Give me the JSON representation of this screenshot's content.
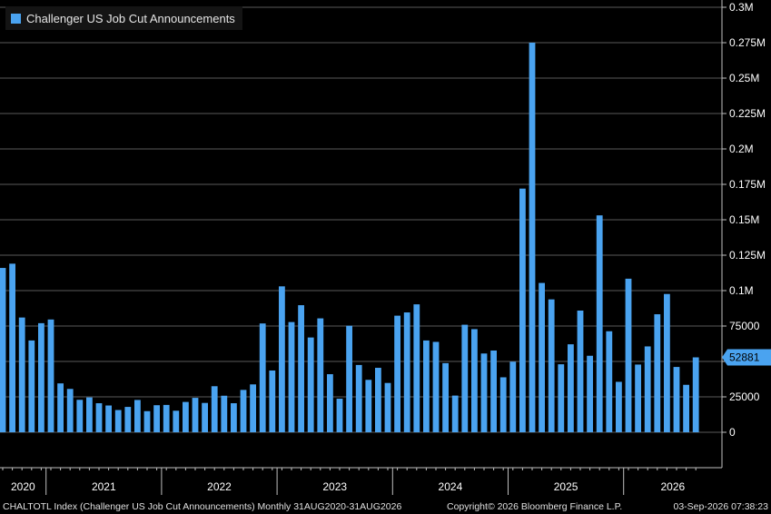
{
  "colors": {
    "bar": "#4aa3f0",
    "grid": "#5a5a5a",
    "axis": "#bfbfbf",
    "last_badge": "#4aa3f0",
    "background": "#000000"
  },
  "legend": {
    "label": "Challenger US Job Cut Announcements"
  },
  "footer": {
    "left": "CHALTOTL Index (Challenger US Job Cut Announcements) Monthly 31AUG2020-31AUG2026",
    "middle": "Copyright© 2026 Bloomberg Finance L.P.",
    "right": "03-Sep-2026 07:38:23"
  },
  "chart_data": {
    "type": "bar",
    "title": "",
    "xlabel": "",
    "ylabel": "",
    "ylim": [
      0,
      300000
    ],
    "y_ticks": [
      0,
      25000,
      50000,
      75000,
      100000,
      125000,
      150000,
      175000,
      200000,
      225000,
      250000,
      275000,
      300000
    ],
    "y_tick_labels": [
      "0",
      "25000",
      "",
      "75000",
      "0.1M",
      "0.125M",
      "0.15M",
      "0.175M",
      "0.2M",
      "0.225M",
      "0.25M",
      "0.275M",
      "0.3M"
    ],
    "x_year_labels": [
      "2020",
      "2021",
      "2022",
      "2023",
      "2024",
      "2025",
      "2026"
    ],
    "last_value_label": "52881",
    "grid": true,
    "legend_position": "top-left",
    "categories": [
      "Aug 2020",
      "Sep 2020",
      "Oct 2020",
      "Nov 2020",
      "Dec 2020",
      "Jan 2021",
      "Feb 2021",
      "Mar 2021",
      "Apr 2021",
      "May 2021",
      "Jun 2021",
      "Jul 2021",
      "Aug 2021",
      "Sep 2021",
      "Oct 2021",
      "Nov 2021",
      "Dec 2021",
      "Jan 2022",
      "Feb 2022",
      "Mar 2022",
      "Apr 2022",
      "May 2022",
      "Jun 2022",
      "Jul 2022",
      "Aug 2022",
      "Sep 2022",
      "Oct 2022",
      "Nov 2022",
      "Dec 2022",
      "Jan 2023",
      "Feb 2023",
      "Mar 2023",
      "Apr 2023",
      "May 2023",
      "Jun 2023",
      "Jul 2023",
      "Aug 2023",
      "Sep 2023",
      "Oct 2023",
      "Nov 2023",
      "Dec 2023",
      "Jan 2024",
      "Feb 2024",
      "Mar 2024",
      "Apr 2024",
      "May 2024",
      "Jun 2024",
      "Jul 2024",
      "Aug 2024",
      "Sep 2024",
      "Oct 2024",
      "Nov 2024",
      "Dec 2024",
      "Jan 2025",
      "Feb 2025",
      "Mar 2025",
      "Apr 2025",
      "May 2025",
      "Jun 2025",
      "Jul 2025",
      "Aug 2025",
      "Sep 2025",
      "Oct 2025",
      "Nov 2025",
      "Dec 2025",
      "Jan 2026",
      "Feb 2026",
      "Mar 2026",
      "Apr 2026",
      "May 2026",
      "Jun 2026",
      "Jul 2026",
      "Aug 2026"
    ],
    "series": [
      {
        "name": "Challenger US Job Cut Announcements",
        "values": [
          116000,
          119000,
          81000,
          64800,
          77000,
          79600,
          34500,
          30600,
          22900,
          24600,
          20500,
          18900,
          15700,
          17900,
          22800,
          14900,
          19100,
          19300,
          15200,
          21400,
          24300,
          20700,
          32500,
          25800,
          20500,
          29900,
          33800,
          76800,
          43600,
          103000,
          77800,
          89700,
          66900,
          80400,
          41000,
          23700,
          75200,
          47500,
          37000,
          45500,
          34800,
          82300,
          84600,
          90300,
          64800,
          63800,
          48800,
          25900,
          75900,
          72800,
          55600,
          57700,
          38800,
          49800,
          172000,
          275000,
          105400,
          93800,
          47999,
          62100,
          85900,
          54000,
          153100,
          71300,
          35600,
          108400,
          47800,
          60600,
          83300,
          97600,
          46100,
          33500,
          52881
        ]
      }
    ]
  }
}
